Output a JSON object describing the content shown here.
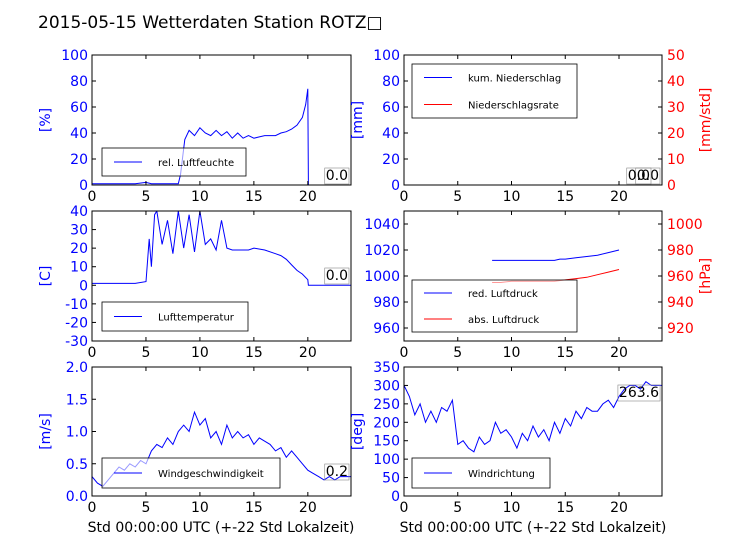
{
  "page": {
    "title": "2015-05-15 Wetterdaten Station ROTZ□",
    "xlabel": "Std 00:00:00 UTC (+-22 Std Lokalzeit)"
  },
  "colors": {
    "blue": "#0000ff",
    "red": "#ff0000",
    "light_blue": "#8080ff"
  },
  "chart_data": [
    {
      "type": "line",
      "panel": "humidity",
      "ylabel": "[%]",
      "ylim": [
        0,
        100
      ],
      "yticks": [
        0,
        20,
        40,
        60,
        80,
        100
      ],
      "xlim": [
        0,
        24
      ],
      "xticks": [
        0,
        5,
        10,
        15,
        20
      ],
      "legend": "lower-left",
      "annotation": "0.0",
      "series": [
        {
          "name": "rel. Luftfeuchte",
          "color": "#0000ff",
          "x": [
            0,
            1,
            2,
            3,
            4,
            5,
            5.5,
            6,
            7,
            8,
            8.2,
            8.6,
            9,
            9.5,
            10,
            10.5,
            11,
            11.5,
            12,
            12.5,
            13,
            13.5,
            14,
            14.5,
            15,
            15.5,
            16,
            16.5,
            17,
            17.5,
            18,
            18.5,
            19,
            19.5,
            19.8,
            20,
            20.05,
            21,
            22,
            23,
            24
          ],
          "y": [
            1,
            1,
            1,
            1,
            1,
            2,
            1,
            1,
            1,
            1,
            8,
            35,
            42,
            38,
            44,
            40,
            38,
            42,
            38,
            41,
            36,
            40,
            36,
            38,
            36,
            37,
            38,
            38,
            38,
            40,
            41,
            43,
            46,
            52,
            62,
            74,
            0,
            0,
            0,
            0,
            0
          ]
        }
      ]
    },
    {
      "type": "line",
      "panel": "precipitation",
      "ylabel": "[mm]",
      "ylabel_right": "[mm/std]",
      "ylim": [
        0,
        100
      ],
      "ylim_right": [
        0,
        50
      ],
      "yticks": [
        0,
        20,
        40,
        60,
        80,
        100
      ],
      "yticks_right": [
        0,
        10,
        20,
        30,
        40,
        50
      ],
      "xlim": [
        0,
        24
      ],
      "xticks": [
        0,
        5,
        10,
        15,
        20
      ],
      "legend": "upper-left",
      "annotation": "0.0",
      "annotation_2": "0.0",
      "series": [
        {
          "name": "kum. Niederschlag",
          "color": "#0000ff",
          "axis": "left",
          "x": [
            0,
            20
          ],
          "y": [
            0,
            0
          ]
        },
        {
          "name": "Niederschlagsrate",
          "color": "#ff0000",
          "axis": "right",
          "x": [
            0,
            20
          ],
          "y": [
            0,
            0
          ]
        }
      ]
    },
    {
      "type": "line",
      "panel": "temperature",
      "ylabel": "[C]",
      "ylim": [
        -30,
        40
      ],
      "yticks": [
        -30,
        -20,
        -10,
        0,
        10,
        20,
        30,
        40
      ],
      "xlim": [
        0,
        24
      ],
      "xticks": [
        0,
        5,
        10,
        15,
        20
      ],
      "legend": "lower-left",
      "annotation": "0.0",
      "series": [
        {
          "name": "Lufttemperatur",
          "color": "#0000ff",
          "x": [
            0,
            1,
            2,
            3,
            4,
            5,
            5.3,
            5.5,
            5.8,
            6,
            6.5,
            7,
            7.5,
            8,
            8.5,
            9,
            9.5,
            10,
            10.5,
            11,
            11.5,
            12,
            12.5,
            13,
            13.5,
            14,
            14.5,
            15,
            16,
            17,
            17.5,
            18,
            18.5,
            19,
            19.5,
            20,
            20.05,
            21,
            22,
            23,
            24
          ],
          "y": [
            1,
            1,
            1,
            1,
            1,
            2,
            25,
            10,
            38,
            40,
            22,
            35,
            17,
            40,
            20,
            38,
            18,
            40,
            22,
            25,
            19,
            35,
            20,
            19,
            19,
            19,
            19,
            20,
            19,
            17,
            16,
            14,
            11,
            8,
            6,
            3,
            0,
            0,
            0,
            0,
            0
          ]
        }
      ]
    },
    {
      "type": "line",
      "panel": "pressure",
      "ylabel_right": "[hPa]",
      "ylim": [
        950,
        1050
      ],
      "ylim_right": [
        910,
        1010
      ],
      "yticks": [
        960,
        980,
        1000,
        1020,
        1040
      ],
      "yticks_right": [
        920,
        940,
        960,
        980,
        1000
      ],
      "xlim": [
        0,
        24
      ],
      "xticks": [
        0,
        5,
        10,
        15,
        20
      ],
      "legend": "lower-left",
      "series": [
        {
          "name": "red. Luftdruck",
          "color": "#0000ff",
          "axis": "left",
          "x": [
            8.2,
            9,
            10,
            11,
            12,
            13,
            14,
            14.5,
            15,
            16,
            17,
            18,
            19,
            20
          ],
          "y": [
            1012,
            1012,
            1012,
            1012,
            1012,
            1012,
            1012,
            1013,
            1013,
            1014,
            1015,
            1016,
            1018,
            1020
          ]
        },
        {
          "name": "abs. Luftdruck",
          "color": "#ff0000",
          "axis": "right",
          "x": [
            8.2,
            9,
            10,
            11,
            12,
            13,
            14,
            15,
            16,
            17,
            18,
            19,
            20
          ],
          "y": [
            955,
            955,
            956,
            956,
            956,
            956,
            956,
            957,
            958,
            959,
            961,
            963,
            965
          ]
        }
      ]
    },
    {
      "type": "line",
      "panel": "wind_speed",
      "ylabel": "[m/s]",
      "ylim": [
        0,
        2
      ],
      "yticks": [
        0.0,
        0.5,
        1.0,
        1.5,
        2.0
      ],
      "xlim": [
        0,
        24
      ],
      "xticks": [
        0,
        5,
        10,
        15,
        20
      ],
      "legend": "lower-left",
      "annotation": "0.2",
      "series": [
        {
          "name": "Windgeschwindigkeit",
          "color": "#0000ff",
          "x": [
            0,
            0.5,
            1,
            1.5,
            2,
            2.5,
            3,
            3.5,
            4,
            4.5,
            5,
            5.5,
            6,
            6.5,
            7,
            7.5,
            8,
            8.5,
            9,
            9.5,
            10,
            10.5,
            11,
            11.5,
            12,
            12.5,
            13,
            13.5,
            14,
            14.5,
            15,
            15.5,
            16,
            16.5,
            17,
            17.5,
            18,
            18.5,
            19,
            19.5,
            20,
            20.5,
            21,
            21.5,
            22,
            22.5,
            23,
            23.5,
            24
          ],
          "y": [
            0.3,
            0.2,
            0.15,
            0.25,
            0.35,
            0.45,
            0.4,
            0.5,
            0.45,
            0.55,
            0.5,
            0.7,
            0.8,
            0.75,
            0.9,
            0.8,
            1.0,
            1.1,
            1.0,
            1.3,
            1.1,
            1.2,
            0.9,
            1.0,
            0.8,
            1.1,
            0.9,
            1.0,
            0.9,
            0.95,
            0.8,
            0.9,
            0.85,
            0.8,
            0.7,
            0.75,
            0.6,
            0.7,
            0.6,
            0.5,
            0.4,
            0.35,
            0.3,
            0.25,
            0.3,
            0.25,
            0.3,
            0.3,
            0.3
          ]
        }
      ]
    },
    {
      "type": "line",
      "panel": "wind_direction",
      "ylabel": "[deg]",
      "ylim": [
        0,
        350
      ],
      "yticks": [
        0,
        50,
        100,
        150,
        200,
        250,
        300,
        350
      ],
      "xlim": [
        0,
        24
      ],
      "xticks": [
        0,
        5,
        10,
        15,
        20
      ],
      "legend": "lower-left",
      "annotation": "263.6",
      "series": [
        {
          "name": "Windrichtung",
          "color": "#0000ff",
          "x": [
            0,
            0.5,
            1,
            1.5,
            2,
            2.5,
            3,
            3.5,
            4,
            4.5,
            5,
            5.5,
            6,
            6.5,
            7,
            7.5,
            8,
            8.5,
            9,
            9.5,
            10,
            10.5,
            11,
            11.5,
            12,
            12.5,
            13,
            13.5,
            14,
            14.5,
            15,
            15.5,
            16,
            16.5,
            17,
            17.5,
            18,
            18.5,
            19,
            19.5,
            20,
            20.5,
            21,
            21.5,
            22,
            22.5,
            23,
            23.5,
            24
          ],
          "y": [
            300,
            270,
            220,
            250,
            200,
            230,
            200,
            240,
            230,
            260,
            140,
            150,
            130,
            120,
            160,
            140,
            150,
            200,
            170,
            180,
            160,
            130,
            170,
            150,
            190,
            160,
            180,
            150,
            200,
            170,
            210,
            190,
            230,
            210,
            240,
            230,
            230,
            250,
            260,
            240,
            270,
            290,
            300,
            300,
            290,
            310,
            300,
            300,
            300
          ]
        }
      ]
    }
  ]
}
